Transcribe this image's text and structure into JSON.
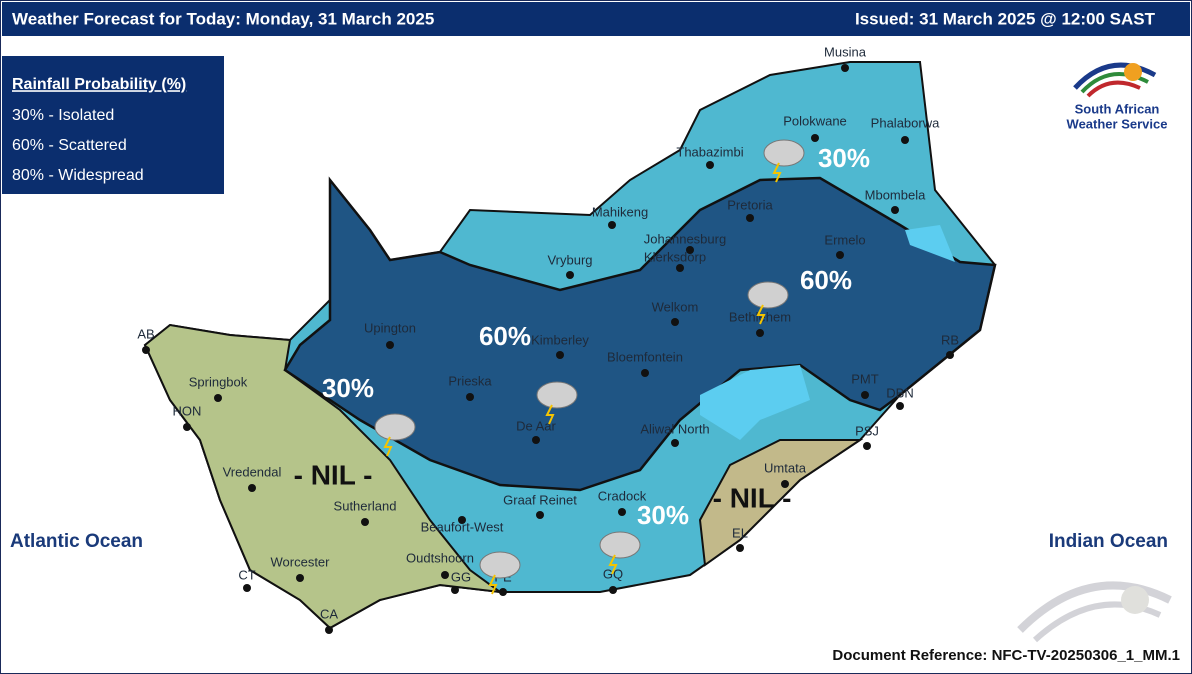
{
  "header": {
    "title": "Weather Forecast for Today:  Monday, 31 March 2025",
    "issued": "Issued: 31 March 2025 @ 12:00 SAST"
  },
  "legend": {
    "title": "Rainfall Probability (%)",
    "items": [
      "30% - Isolated",
      "60% - Scattered",
      "80% - Widespread"
    ]
  },
  "logo": {
    "line1": "South African",
    "line2": "Weather Service"
  },
  "oceans": [
    "Atlantic Ocean",
    "Indian Ocean"
  ],
  "zones": [
    {
      "label": "30%"
    },
    {
      "label": "60%"
    },
    {
      "label": "60%"
    },
    {
      "label": "30%"
    },
    {
      "label": "30%"
    },
    {
      "label": "- NIL -"
    },
    {
      "label": "- NIL -"
    }
  ],
  "cities": [
    "Musina",
    "Polokwane",
    "Phalaborwa",
    "Thabazimbi",
    "Mbombela",
    "Mahikeng",
    "Pretoria",
    "Johannesburg",
    "Klerksdorp",
    "Vryburg",
    "Ermelo",
    "Upington",
    "Kimberley",
    "Bloemfontein",
    "Welkom",
    "Bethlehem",
    "RB",
    "AB",
    "Springbok",
    "HON",
    "Prieska",
    "De Aar",
    "PMT",
    "DBN",
    "Aliwal North",
    "PSJ",
    "Vredendal",
    "Umtata",
    "Sutherland",
    "Graaf Reinet",
    "Cradock",
    "Beaufort-West",
    "EL",
    "Worcester",
    "Oudtshoorn",
    "CT",
    "GG",
    "PE",
    "GQ",
    "CA"
  ],
  "footer": {
    "reference": "Document Reference: NFC-TV-20250306_1_MM.1"
  }
}
